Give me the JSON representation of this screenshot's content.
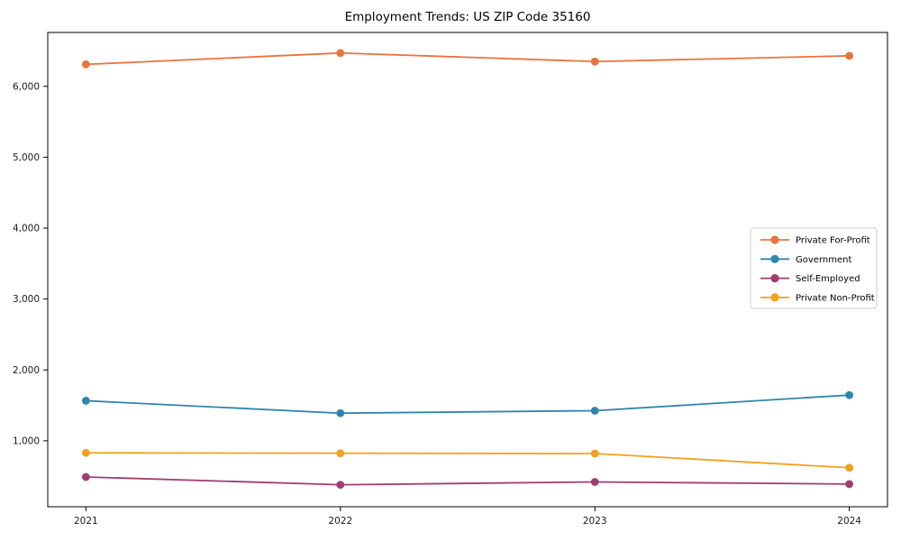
{
  "chart_data": {
    "type": "line",
    "title": "Employment Trends: US ZIP Code 35160",
    "xlabel": "",
    "ylabel": "",
    "x": [
      2021,
      2022,
      2023,
      2024
    ],
    "x_tick_labels": [
      "2021",
      "2022",
      "2023",
      "2024"
    ],
    "series": [
      {
        "name": "Private For-Profit",
        "color": "#E8743C",
        "values": [
          6310,
          6470,
          6350,
          6430
        ]
      },
      {
        "name": "Government",
        "color": "#2E86AB",
        "values": [
          1565,
          1390,
          1425,
          1645
        ]
      },
      {
        "name": "Self-Employed",
        "color": "#A23B72",
        "values": [
          490,
          380,
          420,
          390
        ]
      },
      {
        "name": "Private Non-Profit",
        "color": "#F5A01E",
        "values": [
          830,
          825,
          820,
          620
        ]
      }
    ],
    "xlim": [
      2020.85,
      2024.15
    ],
    "ylim": [
      70,
      6760
    ],
    "yticks": [
      1000,
      2000,
      3000,
      4000,
      5000,
      6000
    ],
    "ytick_labels": [
      "1,000",
      "2,000",
      "3,000",
      "4,000",
      "5,000",
      "6,000"
    ],
    "grid": false,
    "marker": "o",
    "legend": {
      "position": "center-right",
      "entries": [
        "Private For-Profit",
        "Government",
        "Self-Employed",
        "Private Non-Profit"
      ]
    },
    "colors": {
      "spine": "#000000",
      "tick_label": "#1a1a1a",
      "legend_border": "#cccccc",
      "background": "#ffffff"
    }
  }
}
